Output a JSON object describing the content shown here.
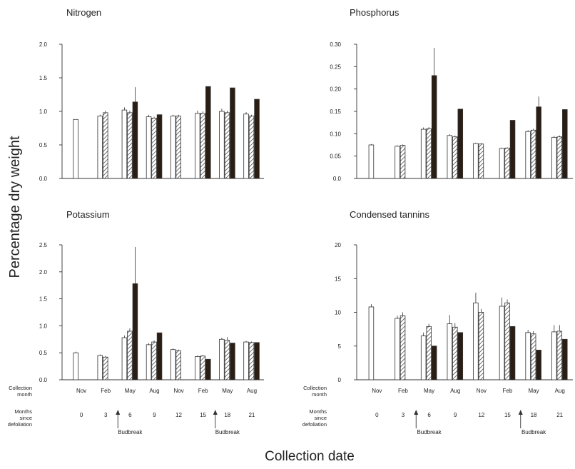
{
  "figure": {
    "y_label": "Percentage dry weight",
    "x_label": "Collection date"
  },
  "row_labels": {
    "collection_month": "Collection\nmonth",
    "months_since": "Months\nsince\ndefoliation"
  },
  "budbreak_label": "Budbreak",
  "colors": {
    "open": "#ffffff",
    "hatched": "#ffffff",
    "solid": "#2a1d14",
    "axis": "#333333"
  },
  "chart_data": [
    {
      "type": "bar",
      "title": "Nitrogen",
      "categories": [
        "Nov",
        "Feb",
        "May",
        "Aug",
        "Nov",
        "Feb",
        "May",
        "Aug"
      ],
      "months_since_defoliation": [
        "0",
        "3",
        "6",
        "9",
        "12",
        "15",
        "18",
        "21"
      ],
      "ylim": [
        0,
        2.0
      ],
      "yticks": [
        "0.0",
        "0.5",
        "1.0",
        "1.5",
        "2.0"
      ],
      "series": [
        {
          "style": "open",
          "values": [
            0.88,
            0.93,
            1.02,
            0.92,
            0.93,
            0.97,
            1.0,
            0.96
          ],
          "errors": [
            0,
            0.02,
            0.04,
            0.03,
            0.02,
            0.04,
            0.04,
            0.03
          ]
        },
        {
          "style": "hatched",
          "values": [
            null,
            0.98,
            0.98,
            0.9,
            0.93,
            0.97,
            0.98,
            0.93
          ],
          "errors": [
            0,
            0.03,
            0.03,
            0.02,
            0.02,
            0.03,
            0.03,
            0.02
          ]
        },
        {
          "style": "solid",
          "values": [
            null,
            null,
            1.14,
            0.95,
            null,
            1.37,
            1.35,
            1.18
          ],
          "errors": [
            0,
            0,
            0.22,
            0,
            0,
            0,
            0,
            0
          ]
        }
      ],
      "budbreak_after_index": [
        1,
        5
      ]
    },
    {
      "type": "bar",
      "title": "Phosphorus",
      "categories": [
        "Nov",
        "Feb",
        "May",
        "Aug",
        "Nov",
        "Feb",
        "May",
        "Aug"
      ],
      "months_since_defoliation": [
        "0",
        "3",
        "6",
        "9",
        "12",
        "15",
        "18",
        "21"
      ],
      "ylim": [
        0,
        0.3
      ],
      "yticks": [
        "0.0",
        "0.05",
        "0.10",
        "0.15",
        "0.20",
        "0.25",
        "0.30"
      ],
      "series": [
        {
          "style": "open",
          "values": [
            0.075,
            0.072,
            0.11,
            0.096,
            0.078,
            0.067,
            0.105,
            0.092
          ],
          "errors": [
            0.002,
            0.002,
            0.004,
            0.003,
            0.002,
            0.002,
            0.003,
            0.003
          ]
        },
        {
          "style": "hatched",
          "values": [
            null,
            0.074,
            0.111,
            0.093,
            0.077,
            0.068,
            0.108,
            0.093
          ],
          "errors": [
            0,
            0.002,
            0.004,
            0.003,
            0.002,
            0.002,
            0.003,
            0.003
          ]
        },
        {
          "style": "solid",
          "values": [
            null,
            null,
            0.23,
            0.155,
            null,
            0.13,
            0.16,
            0.154
          ],
          "errors": [
            0,
            0,
            0.062,
            0,
            0,
            0,
            0.023,
            0
          ]
        }
      ],
      "budbreak_after_index": [
        1,
        5
      ]
    },
    {
      "type": "bar",
      "title": "Potassium",
      "categories": [
        "Nov",
        "Feb",
        "May",
        "Aug",
        "Nov",
        "Feb",
        "May",
        "Aug"
      ],
      "months_since_defoliation": [
        "0",
        "3",
        "6",
        "9",
        "12",
        "15",
        "18",
        "21"
      ],
      "ylim": [
        0,
        2.5
      ],
      "yticks": [
        "0.0",
        "0.5",
        "1.0",
        "1.5",
        "2.0",
        "2.5"
      ],
      "series": [
        {
          "style": "open",
          "values": [
            0.5,
            0.45,
            0.78,
            0.65,
            0.56,
            0.43,
            0.75,
            0.7
          ],
          "errors": [
            0.02,
            0.02,
            0.04,
            0.03,
            0.02,
            0.02,
            0.03,
            0.02
          ]
        },
        {
          "style": "hatched",
          "values": [
            null,
            0.42,
            0.9,
            0.7,
            0.54,
            0.44,
            0.73,
            0.69
          ],
          "errors": [
            0,
            0.02,
            0.05,
            0.03,
            0.02,
            0.02,
            0.06,
            0.02
          ]
        },
        {
          "style": "solid",
          "values": [
            null,
            null,
            1.78,
            0.87,
            null,
            0.38,
            0.68,
            0.69
          ],
          "errors": [
            0,
            0,
            0.68,
            0,
            0,
            0,
            0,
            0
          ]
        }
      ],
      "budbreak_after_index": [
        1,
        5
      ]
    },
    {
      "type": "bar",
      "title": "Condensed tannins",
      "categories": [
        "Nov",
        "Feb",
        "May",
        "Aug",
        "Nov",
        "Feb",
        "May",
        "Aug"
      ],
      "months_since_defoliation": [
        "0",
        "3",
        "6",
        "9",
        "12",
        "15",
        "18",
        "21"
      ],
      "ylim": [
        0,
        20
      ],
      "yticks": [
        "0",
        "5",
        "10",
        "15",
        "20"
      ],
      "series": [
        {
          "style": "open",
          "values": [
            10.8,
            9.1,
            6.5,
            8.3,
            11.4,
            10.9,
            7.0,
            7.1
          ],
          "errors": [
            0.4,
            0.4,
            0.5,
            1.3,
            1.5,
            1.3,
            0.4,
            1.0
          ]
        },
        {
          "style": "hatched",
          "values": [
            null,
            9.5,
            7.9,
            7.8,
            10.0,
            11.4,
            6.8,
            7.2
          ],
          "errors": [
            0,
            0.5,
            0.4,
            0.6,
            0.5,
            0.5,
            0.4,
            0.9
          ]
        },
        {
          "style": "solid",
          "values": [
            null,
            null,
            5.0,
            7.0,
            null,
            7.9,
            4.4,
            6.0
          ],
          "errors": [
            0,
            0,
            0,
            0,
            0,
            0,
            0,
            0
          ]
        }
      ],
      "budbreak_after_index": [
        1,
        5
      ]
    }
  ]
}
